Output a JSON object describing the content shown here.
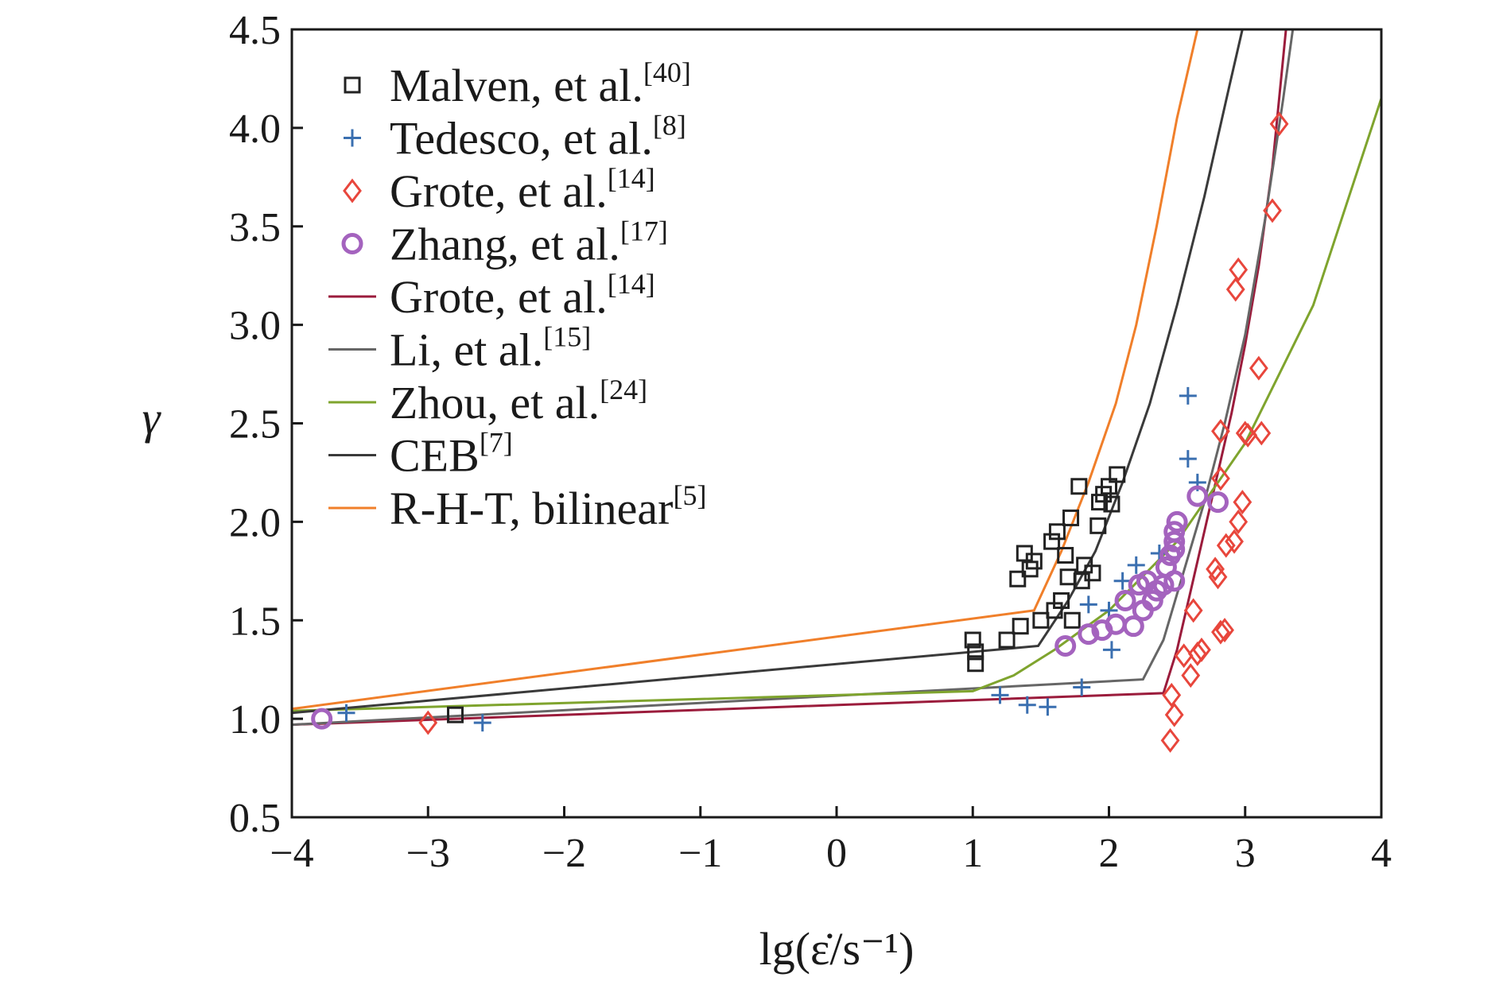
{
  "chart_data": {
    "type": "scatter",
    "xlabel": "lg(ε̇/s⁻¹)",
    "ylabel": "γ",
    "xlim": [
      -4,
      4
    ],
    "ylim": [
      0.5,
      4.5
    ],
    "xticks": [
      "−4",
      "−3",
      "−2",
      "−1",
      "0",
      "1",
      "2",
      "3",
      "4"
    ],
    "yticks": [
      "0.5",
      "1.0",
      "1.5",
      "2.0",
      "2.5",
      "3.0",
      "3.5",
      "4.0",
      "4.5"
    ],
    "grid": false,
    "legend_position": "top-left",
    "scatter_series": [
      {
        "name": "Malven, et al.",
        "ref": "[40]",
        "marker": "square",
        "color": "#222222",
        "points": [
          [
            -2.8,
            1.02
          ],
          [
            1.0,
            1.4
          ],
          [
            1.02,
            1.34
          ],
          [
            1.02,
            1.28
          ],
          [
            1.25,
            1.4
          ],
          [
            1.35,
            1.47
          ],
          [
            1.33,
            1.71
          ],
          [
            1.38,
            1.84
          ],
          [
            1.42,
            1.76
          ],
          [
            1.45,
            1.8
          ],
          [
            1.5,
            1.5
          ],
          [
            1.6,
            1.55
          ],
          [
            1.62,
            1.95
          ],
          [
            1.68,
            1.83
          ],
          [
            1.72,
            2.02
          ],
          [
            1.78,
            2.18
          ],
          [
            1.82,
            1.78
          ],
          [
            1.88,
            1.74
          ],
          [
            1.92,
            1.98
          ],
          [
            1.93,
            2.1
          ],
          [
            1.96,
            2.14
          ],
          [
            2.0,
            2.18
          ],
          [
            2.02,
            2.09
          ],
          [
            2.06,
            2.24
          ],
          [
            1.65,
            1.6
          ],
          [
            1.7,
            1.72
          ],
          [
            1.8,
            1.7
          ],
          [
            1.58,
            1.9
          ],
          [
            1.73,
            1.5
          ]
        ]
      },
      {
        "name": "Tedesco, et al.",
        "ref": "[8]",
        "marker": "plus",
        "color": "#3a6fb0",
        "points": [
          [
            -3.6,
            1.03
          ],
          [
            -2.6,
            0.98
          ],
          [
            1.2,
            1.12
          ],
          [
            1.4,
            1.07
          ],
          [
            1.55,
            1.06
          ],
          [
            1.8,
            1.16
          ],
          [
            1.85,
            1.58
          ],
          [
            2.0,
            1.55
          ],
          [
            2.02,
            1.35
          ],
          [
            2.1,
            1.7
          ],
          [
            2.2,
            1.78
          ],
          [
            2.37,
            1.84
          ],
          [
            2.58,
            2.64
          ],
          [
            2.58,
            2.32
          ],
          [
            2.65,
            2.2
          ]
        ]
      },
      {
        "name": "Grote, et al.",
        "ref": "[14]",
        "marker": "diamond",
        "color": "#e8463c",
        "points": [
          [
            -3.0,
            0.98
          ],
          [
            2.45,
            0.89
          ],
          [
            2.48,
            1.02
          ],
          [
            2.46,
            1.12
          ],
          [
            2.55,
            1.32
          ],
          [
            2.6,
            1.22
          ],
          [
            2.62,
            1.55
          ],
          [
            2.65,
            1.33
          ],
          [
            2.68,
            1.35
          ],
          [
            2.78,
            1.76
          ],
          [
            2.8,
            1.72
          ],
          [
            2.82,
            1.44
          ],
          [
            2.85,
            1.45
          ],
          [
            2.86,
            1.88
          ],
          [
            2.92,
            1.9
          ],
          [
            2.95,
            2.0
          ],
          [
            2.98,
            2.1
          ],
          [
            3.0,
            2.45
          ],
          [
            3.02,
            2.44
          ],
          [
            2.82,
            2.22
          ],
          [
            2.82,
            2.46
          ],
          [
            2.93,
            3.18
          ],
          [
            2.95,
            3.28
          ],
          [
            3.1,
            2.78
          ],
          [
            3.12,
            2.45
          ],
          [
            3.2,
            3.58
          ],
          [
            3.25,
            4.02
          ]
        ]
      },
      {
        "name": "Zhang, et al.",
        "ref": "[17]",
        "marker": "circle",
        "color": "#a463be",
        "points": [
          [
            -3.78,
            1.0
          ],
          [
            1.68,
            1.37
          ],
          [
            1.85,
            1.43
          ],
          [
            1.95,
            1.45
          ],
          [
            2.05,
            1.48
          ],
          [
            2.12,
            1.6
          ],
          [
            2.18,
            1.47
          ],
          [
            2.22,
            1.68
          ],
          [
            2.25,
            1.55
          ],
          [
            2.28,
            1.7
          ],
          [
            2.32,
            1.6
          ],
          [
            2.35,
            1.65
          ],
          [
            2.4,
            1.68
          ],
          [
            2.42,
            1.77
          ],
          [
            2.45,
            1.83
          ],
          [
            2.48,
            1.9
          ],
          [
            2.48,
            1.95
          ],
          [
            2.5,
            2.0
          ],
          [
            2.48,
            1.86
          ],
          [
            2.48,
            1.7
          ],
          [
            2.65,
            2.13
          ],
          [
            2.8,
            2.1
          ]
        ]
      }
    ],
    "line_series": [
      {
        "name": "Grote, et al.",
        "ref": "[14]",
        "color": "#9b1c3c",
        "points": [
          [
            -4,
            0.97
          ],
          [
            2.4,
            1.13
          ],
          [
            2.5,
            1.35
          ],
          [
            2.6,
            1.65
          ],
          [
            2.7,
            1.95
          ],
          [
            2.8,
            2.25
          ],
          [
            2.9,
            2.55
          ],
          [
            3.0,
            2.9
          ],
          [
            3.1,
            3.3
          ],
          [
            3.2,
            3.8
          ],
          [
            3.3,
            4.5
          ]
        ]
      },
      {
        "name": "Li, et al.",
        "ref": "[15]",
        "color": "#666666",
        "points": [
          [
            -4,
            0.97
          ],
          [
            2.25,
            1.2
          ],
          [
            2.4,
            1.4
          ],
          [
            2.55,
            1.75
          ],
          [
            2.7,
            2.1
          ],
          [
            2.85,
            2.5
          ],
          [
            3.0,
            2.95
          ],
          [
            3.15,
            3.55
          ],
          [
            3.28,
            4.15
          ],
          [
            3.35,
            4.5
          ]
        ]
      },
      {
        "name": "Zhou, et al.",
        "ref": "[24]",
        "color": "#7fa42e",
        "points": [
          [
            -4,
            1.04
          ],
          [
            1.0,
            1.14
          ],
          [
            1.3,
            1.22
          ],
          [
            1.6,
            1.35
          ],
          [
            2.0,
            1.55
          ],
          [
            2.5,
            1.9
          ],
          [
            3.0,
            2.4
          ],
          [
            3.5,
            3.1
          ],
          [
            4.0,
            4.15
          ]
        ]
      },
      {
        "name": "CEB",
        "ref": "[7]",
        "color": "#3a3a3a",
        "points": [
          [
            -4,
            1.03
          ],
          [
            1.48,
            1.37
          ],
          [
            1.7,
            1.6
          ],
          [
            1.9,
            1.85
          ],
          [
            2.1,
            2.2
          ],
          [
            2.3,
            2.6
          ],
          [
            2.5,
            3.1
          ],
          [
            2.7,
            3.65
          ],
          [
            2.88,
            4.2
          ],
          [
            2.98,
            4.5
          ]
        ]
      },
      {
        "name": "R-H-T, bilinear",
        "ref": "[5]",
        "color": "#f07f2a",
        "points": [
          [
            -4,
            1.05
          ],
          [
            1.45,
            1.55
          ],
          [
            1.65,
            1.85
          ],
          [
            1.85,
            2.2
          ],
          [
            2.05,
            2.6
          ],
          [
            2.2,
            3.0
          ],
          [
            2.35,
            3.5
          ],
          [
            2.5,
            4.05
          ],
          [
            2.65,
            4.5
          ]
        ]
      }
    ]
  }
}
